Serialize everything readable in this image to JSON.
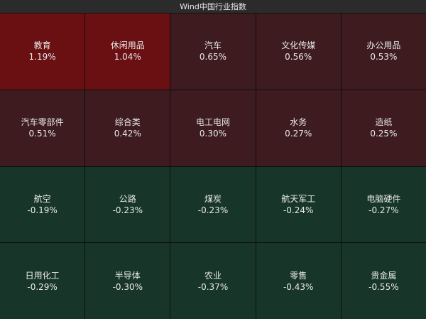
{
  "title": "Wind中国行业指数",
  "colors": {
    "strong_up": "#6a0f12",
    "up": "#3d1b1f",
    "down": "#18352a",
    "text": "#e9e9e9",
    "header_bg": "#2b2b2b"
  },
  "tiles": [
    {
      "name": "教育",
      "change": "1.19%",
      "level": "strong_up"
    },
    {
      "name": "休闲用品",
      "change": "1.04%",
      "level": "strong_up"
    },
    {
      "name": "汽车",
      "change": "0.65%",
      "level": "up"
    },
    {
      "name": "文化传媒",
      "change": "0.56%",
      "level": "up"
    },
    {
      "name": "办公用品",
      "change": "0.53%",
      "level": "up"
    },
    {
      "name": "汽车零部件",
      "change": "0.51%",
      "level": "up"
    },
    {
      "name": "综合类",
      "change": "0.42%",
      "level": "up"
    },
    {
      "name": "电工电网",
      "change": "0.30%",
      "level": "up"
    },
    {
      "name": "水务",
      "change": "0.27%",
      "level": "up"
    },
    {
      "name": "造纸",
      "change": "0.25%",
      "level": "up"
    },
    {
      "name": "航空",
      "change": "-0.19%",
      "level": "down"
    },
    {
      "name": "公路",
      "change": "-0.23%",
      "level": "down"
    },
    {
      "name": "煤炭",
      "change": "-0.23%",
      "level": "down"
    },
    {
      "name": "航天军工",
      "change": "-0.24%",
      "level": "down"
    },
    {
      "name": "电脑硬件",
      "change": "-0.27%",
      "level": "down"
    },
    {
      "name": "日用化工",
      "change": "-0.29%",
      "level": "down"
    },
    {
      "name": "半导体",
      "change": "-0.30%",
      "level": "down"
    },
    {
      "name": "农业",
      "change": "-0.37%",
      "level": "down"
    },
    {
      "name": "零售",
      "change": "-0.43%",
      "level": "down"
    },
    {
      "name": "贵金属",
      "change": "-0.55%",
      "level": "down"
    }
  ]
}
